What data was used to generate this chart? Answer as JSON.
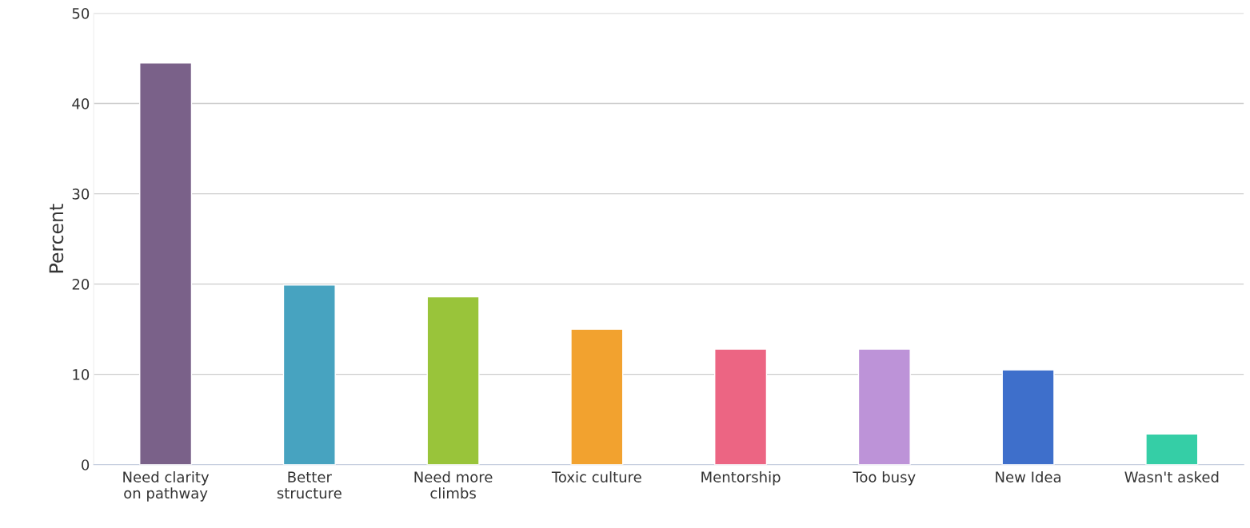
{
  "chart_data": {
    "type": "bar",
    "ylabel": "Percent",
    "categories": [
      "Need clarity\non pathway",
      "Better\nstructure",
      "Need more\nclimbs",
      "Toxic culture",
      "Mentorship",
      "Too busy",
      "New Idea",
      "Wasn't asked"
    ],
    "values": [
      44.5,
      19.9,
      18.6,
      15.0,
      12.8,
      12.8,
      10.5,
      3.4
    ],
    "colors": [
      "#7a6189",
      "#47a3c0",
      "#99c43a",
      "#f2a22f",
      "#ec6583",
      "#bd93d8",
      "#3e6fcb",
      "#35cea6"
    ],
    "ylim": [
      0,
      50
    ],
    "yticks": [
      0,
      10,
      20,
      30,
      40,
      50
    ],
    "grid": "y",
    "legend": false
  }
}
